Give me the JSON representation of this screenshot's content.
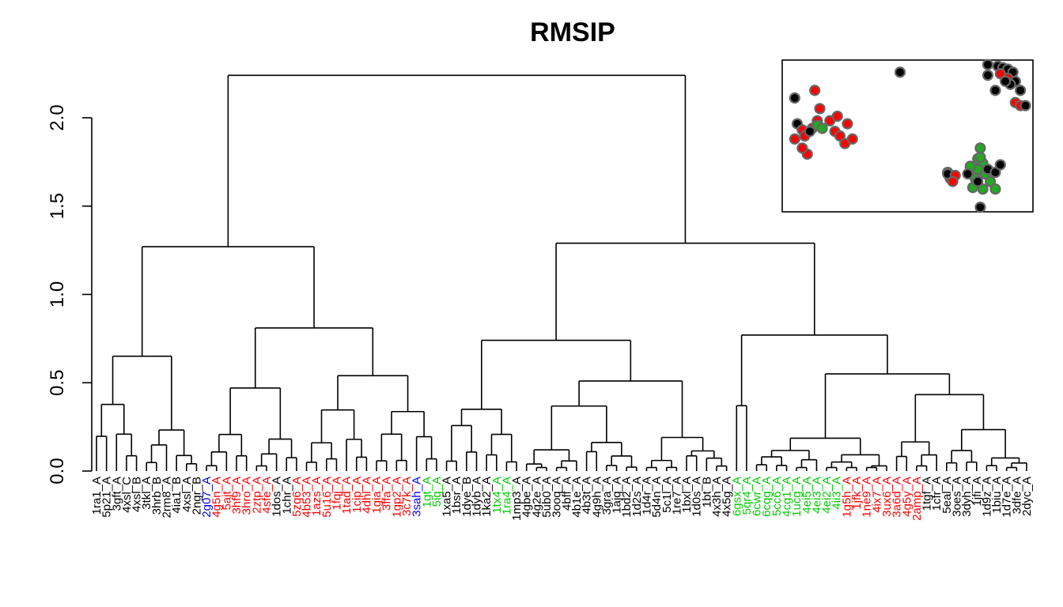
{
  "chart_data": {
    "type": "dendrogram",
    "title": "RMSIP",
    "xlabel": "",
    "ylabel": "",
    "ylim": [
      0,
      2.25
    ],
    "y_ticks": [
      0.0,
      0.5,
      1.0,
      1.5,
      2.0
    ],
    "y_tick_labels": [
      "0.0",
      "0.5",
      "1.0",
      "1.5",
      "2.0"
    ],
    "root_height": 2.24,
    "main_clusters": [
      {
        "name": "left",
        "height": 1.27,
        "children": [
          {
            "height": 0.65
          },
          {
            "height": 0.81,
            "children": [
              {
                "height": 0.47
              },
              {
                "height": 0.54
              }
            ]
          }
        ]
      },
      {
        "name": "right",
        "height": 1.29,
        "children": [
          {
            "height": 0.74,
            "children": [
              {
                "height": 0.35
              },
              {
                "height": 0.51
              }
            ]
          },
          {
            "height": 0.77,
            "children": [
              {
                "height": 0.37
              },
              {
                "height": 0.55
              }
            ]
          }
        ]
      }
    ],
    "leaf_labels": [
      {
        "text": "1ra1_A",
        "color": "#000000"
      },
      {
        "text": "5p21_A",
        "color": "#000000"
      },
      {
        "text": "3gft_A",
        "color": "#000000"
      },
      {
        "text": "4xsl_C",
        "color": "#000000"
      },
      {
        "text": "4xsl_B",
        "color": "#000000"
      },
      {
        "text": "3tkl_A",
        "color": "#000000"
      },
      {
        "text": "3hrb_B",
        "color": "#000000"
      },
      {
        "text": "2rm8_A",
        "color": "#000000"
      },
      {
        "text": "4ia1_B",
        "color": "#000000"
      },
      {
        "text": "4xsl_A",
        "color": "#000000"
      },
      {
        "text": "2ngr_B",
        "color": "#000000"
      },
      {
        "text": "2g07_A",
        "color": "#0000ff"
      },
      {
        "text": "4g5n_A",
        "color": "#ff0000"
      },
      {
        "text": "5ajt_A",
        "color": "#ff0000"
      },
      {
        "text": "3hf9_A",
        "color": "#ff0000"
      },
      {
        "text": "3hro_A",
        "color": "#ff0000"
      },
      {
        "text": "2ztp_A",
        "color": "#ff0000"
      },
      {
        "text": "4sfe_A",
        "color": "#ff0000"
      },
      {
        "text": "1dos_A",
        "color": "#000000"
      },
      {
        "text": "1chr_A",
        "color": "#000000"
      },
      {
        "text": "5zq6_A",
        "color": "#ff0000"
      },
      {
        "text": "4b53_A",
        "color": "#ff0000"
      },
      {
        "text": "1azs_A",
        "color": "#ff0000"
      },
      {
        "text": "5u16_A",
        "color": "#ff0000"
      },
      {
        "text": "1fqj_A",
        "color": "#ff0000"
      },
      {
        "text": "1tad_A",
        "color": "#ff0000"
      },
      {
        "text": "1cip_A",
        "color": "#ff0000"
      },
      {
        "text": "4dhl_A",
        "color": "#ff0000"
      },
      {
        "text": "1gia_A",
        "color": "#ff0000"
      },
      {
        "text": "3ffa_A",
        "color": "#ff0000"
      },
      {
        "text": "1gp2_A",
        "color": "#ff0000"
      },
      {
        "text": "3c7k_A",
        "color": "#ff0000"
      },
      {
        "text": "3sah_A",
        "color": "#0000ff"
      },
      {
        "text": "1gt_A",
        "color": "#00cc00"
      },
      {
        "text": "5iq_A",
        "color": "#00cc00"
      },
      {
        "text": "1xa5_A",
        "color": "#000000"
      },
      {
        "text": "1bsr_A",
        "color": "#000000"
      },
      {
        "text": "1dye_B",
        "color": "#000000"
      },
      {
        "text": "1dyb_A",
        "color": "#000000"
      },
      {
        "text": "1ka2_A",
        "color": "#000000"
      },
      {
        "text": "1tx4_A",
        "color": "#00cc00"
      },
      {
        "text": "1ra4_A",
        "color": "#00cc00"
      },
      {
        "text": "1mp3_A",
        "color": "#000000"
      },
      {
        "text": "4gbe_A",
        "color": "#000000"
      },
      {
        "text": "4g2e_A",
        "color": "#000000"
      },
      {
        "text": "5ub0_A",
        "color": "#000000"
      },
      {
        "text": "3ooq_A",
        "color": "#000000"
      },
      {
        "text": "4bff_A",
        "color": "#000000"
      },
      {
        "text": "4b1e_A",
        "color": "#000000"
      },
      {
        "text": "4b3t_A",
        "color": "#000000"
      },
      {
        "text": "4g9h_A",
        "color": "#000000"
      },
      {
        "text": "3gra_A",
        "color": "#000000"
      },
      {
        "text": "1ajq_A",
        "color": "#000000"
      },
      {
        "text": "1bd2_A",
        "color": "#000000"
      },
      {
        "text": "1d2s_A",
        "color": "#000000"
      },
      {
        "text": "1d4r_A",
        "color": "#000000"
      },
      {
        "text": "5d4n_A",
        "color": "#000000"
      },
      {
        "text": "5c1l_A",
        "color": "#000000"
      },
      {
        "text": "1re7_A",
        "color": "#000000"
      },
      {
        "text": "1bxl_A",
        "color": "#000000"
      },
      {
        "text": "1d0s_A",
        "color": "#000000"
      },
      {
        "text": "1bt_B",
        "color": "#000000"
      },
      {
        "text": "4x3h_A",
        "color": "#000000"
      },
      {
        "text": "4x5g_A",
        "color": "#000000"
      },
      {
        "text": "6gsx_A",
        "color": "#00cc00"
      },
      {
        "text": "5qr4_A",
        "color": "#00cc00"
      },
      {
        "text": "6cwr_A",
        "color": "#00cc00"
      },
      {
        "text": "6cqg_A",
        "color": "#00cc00"
      },
      {
        "text": "5cc6_A",
        "color": "#00cc00"
      },
      {
        "text": "4cg1_A",
        "color": "#00cc00"
      },
      {
        "text": "1ucg_A",
        "color": "#00cc00"
      },
      {
        "text": "4ei5_A",
        "color": "#00cc00"
      },
      {
        "text": "4ei3_A",
        "color": "#00cc00"
      },
      {
        "text": "4ei2_A",
        "color": "#00cc00"
      },
      {
        "text": "4ii3_A",
        "color": "#00cc00"
      },
      {
        "text": "1g5h_A",
        "color": "#ff0000"
      },
      {
        "text": "1jfk_A",
        "color": "#ff0000"
      },
      {
        "text": "1ne9_A",
        "color": "#ff0000"
      },
      {
        "text": "4ix7_A",
        "color": "#ff0000"
      },
      {
        "text": "3ux6_A",
        "color": "#ff0000"
      },
      {
        "text": "3a6d_A",
        "color": "#ff0000"
      },
      {
        "text": "4g5y_A",
        "color": "#ff0000"
      },
      {
        "text": "2amp_A",
        "color": "#ff0000"
      },
      {
        "text": "1tgf_A",
        "color": "#000000"
      },
      {
        "text": "1cfr_A",
        "color": "#000000"
      },
      {
        "text": "5eal_A",
        "color": "#000000"
      },
      {
        "text": "3oes_A",
        "color": "#000000"
      },
      {
        "text": "3dyh_A",
        "color": "#000000"
      },
      {
        "text": "1jfi_A",
        "color": "#000000"
      },
      {
        "text": "1d9z_A",
        "color": "#000000"
      },
      {
        "text": "1biu_A",
        "color": "#000000"
      },
      {
        "text": "1d7e_A",
        "color": "#000000"
      },
      {
        "text": "3dfe_A",
        "color": "#000000"
      },
      {
        "text": "2dyc_A",
        "color": "#000000"
      }
    ],
    "inset_scatter": {
      "type": "scatter",
      "colors": {
        "black": "#000000",
        "red": "#ff0000",
        "green": "#22aa22",
        "outline": "#666666"
      },
      "points": [
        {
          "x": 0.05,
          "y": 0.75,
          "c": "black"
        },
        {
          "x": 0.06,
          "y": 0.58,
          "c": "black"
        },
        {
          "x": 0.05,
          "y": 0.48,
          "c": "red"
        },
        {
          "x": 0.08,
          "y": 0.54,
          "c": "red"
        },
        {
          "x": 0.09,
          "y": 0.5,
          "c": "red"
        },
        {
          "x": 0.1,
          "y": 0.38,
          "c": "red"
        },
        {
          "x": 0.08,
          "y": 0.42,
          "c": "red"
        },
        {
          "x": 0.14,
          "y": 0.6,
          "c": "red"
        },
        {
          "x": 0.13,
          "y": 0.8,
          "c": "red"
        },
        {
          "x": 0.15,
          "y": 0.68,
          "c": "red"
        },
        {
          "x": 0.12,
          "y": 0.55,
          "c": "red"
        },
        {
          "x": 0.14,
          "y": 0.57,
          "c": "green"
        },
        {
          "x": 0.16,
          "y": 0.55,
          "c": "green"
        },
        {
          "x": 0.11,
          "y": 0.53,
          "c": "black"
        },
        {
          "x": 0.19,
          "y": 0.6,
          "c": "red"
        },
        {
          "x": 0.21,
          "y": 0.53,
          "c": "red"
        },
        {
          "x": 0.23,
          "y": 0.5,
          "c": "red"
        },
        {
          "x": 0.25,
          "y": 0.45,
          "c": "red"
        },
        {
          "x": 0.22,
          "y": 0.63,
          "c": "red"
        },
        {
          "x": 0.26,
          "y": 0.58,
          "c": "red"
        },
        {
          "x": 0.28,
          "y": 0.48,
          "c": "red"
        },
        {
          "x": 0.47,
          "y": 0.92,
          "c": "black"
        },
        {
          "x": 0.82,
          "y": 0.97,
          "c": "black"
        },
        {
          "x": 0.86,
          "y": 0.96,
          "c": "black"
        },
        {
          "x": 0.88,
          "y": 0.95,
          "c": "black"
        },
        {
          "x": 0.9,
          "y": 0.94,
          "c": "black"
        },
        {
          "x": 0.92,
          "y": 0.92,
          "c": "black"
        },
        {
          "x": 0.82,
          "y": 0.9,
          "c": "black"
        },
        {
          "x": 0.87,
          "y": 0.91,
          "c": "red"
        },
        {
          "x": 0.9,
          "y": 0.88,
          "c": "red"
        },
        {
          "x": 0.93,
          "y": 0.86,
          "c": "black"
        },
        {
          "x": 0.91,
          "y": 0.84,
          "c": "black"
        },
        {
          "x": 0.89,
          "y": 0.86,
          "c": "black"
        },
        {
          "x": 0.95,
          "y": 0.8,
          "c": "black"
        },
        {
          "x": 0.85,
          "y": 0.8,
          "c": "black"
        },
        {
          "x": 0.93,
          "y": 0.72,
          "c": "red"
        },
        {
          "x": 0.95,
          "y": 0.7,
          "c": "red"
        },
        {
          "x": 0.97,
          "y": 0.7,
          "c": "black"
        },
        {
          "x": 0.66,
          "y": 0.26,
          "c": "red"
        },
        {
          "x": 0.67,
          "y": 0.22,
          "c": "red"
        },
        {
          "x": 0.66,
          "y": 0.25,
          "c": "black"
        },
        {
          "x": 0.69,
          "y": 0.24,
          "c": "red"
        },
        {
          "x": 0.68,
          "y": 0.2,
          "c": "red"
        },
        {
          "x": 0.79,
          "y": 0.42,
          "c": "green"
        },
        {
          "x": 0.78,
          "y": 0.35,
          "c": "green"
        },
        {
          "x": 0.8,
          "y": 0.32,
          "c": "green"
        },
        {
          "x": 0.78,
          "y": 0.28,
          "c": "green"
        },
        {
          "x": 0.81,
          "y": 0.25,
          "c": "green"
        },
        {
          "x": 0.77,
          "y": 0.22,
          "c": "green"
        },
        {
          "x": 0.75,
          "y": 0.3,
          "c": "green"
        },
        {
          "x": 0.83,
          "y": 0.2,
          "c": "green"
        },
        {
          "x": 0.8,
          "y": 0.15,
          "c": "green"
        },
        {
          "x": 0.76,
          "y": 0.16,
          "c": "green"
        },
        {
          "x": 0.85,
          "y": 0.15,
          "c": "green"
        },
        {
          "x": 0.78,
          "y": 0.2,
          "c": "black"
        },
        {
          "x": 0.82,
          "y": 0.28,
          "c": "black"
        },
        {
          "x": 0.85,
          "y": 0.26,
          "c": "black"
        },
        {
          "x": 0.87,
          "y": 0.31,
          "c": "black"
        },
        {
          "x": 0.74,
          "y": 0.25,
          "c": "black"
        },
        {
          "x": 0.79,
          "y": 0.03,
          "c": "black"
        },
        {
          "x": 0.79,
          "y": 0.36,
          "c": "green"
        }
      ]
    }
  }
}
